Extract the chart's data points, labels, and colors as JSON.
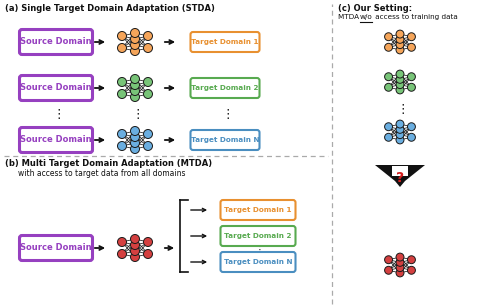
{
  "fig_width": 4.82,
  "fig_height": 3.08,
  "dpi": 100,
  "bg": "#ffffff",
  "colors": {
    "orange": "#F5A55A",
    "green": "#78C478",
    "blue": "#6AAEE0",
    "red": "#D42020",
    "purple": "#9640C0",
    "orange_border": "#E89030",
    "green_border": "#58AA50",
    "blue_border": "#4A8EC0",
    "node_edge": "#1a1a1a",
    "arrow": "#111111",
    "dash": "#aaaaaa"
  },
  "section_a_title": "(a) Single Target Domain Adaptation (STDA)",
  "section_b_title": "(b) Multi Target Domain Adaptation (MTDA)",
  "section_b_subtitle": "with access to target data from all domains",
  "section_c_title": "(c) Our Setting:",
  "section_c_sub1": "MTDA ",
  "section_c_wo": "w/o",
  "section_c_sub2": " access to training data",
  "source_label": "Source Domain",
  "target_labels": [
    "Target Domain 1",
    "Target Domain 2",
    "Target Domain N"
  ],
  "stda_net_colors": [
    "#F5A55A",
    "#78C478",
    "#6AAEE0"
  ],
  "mtda_net_color": "#D44040",
  "border_colors": [
    "#E89030",
    "#58AA50",
    "#4A8EC0"
  ],
  "text_colors": [
    "#E89030",
    "#58AA50",
    "#4A8EC0"
  ]
}
